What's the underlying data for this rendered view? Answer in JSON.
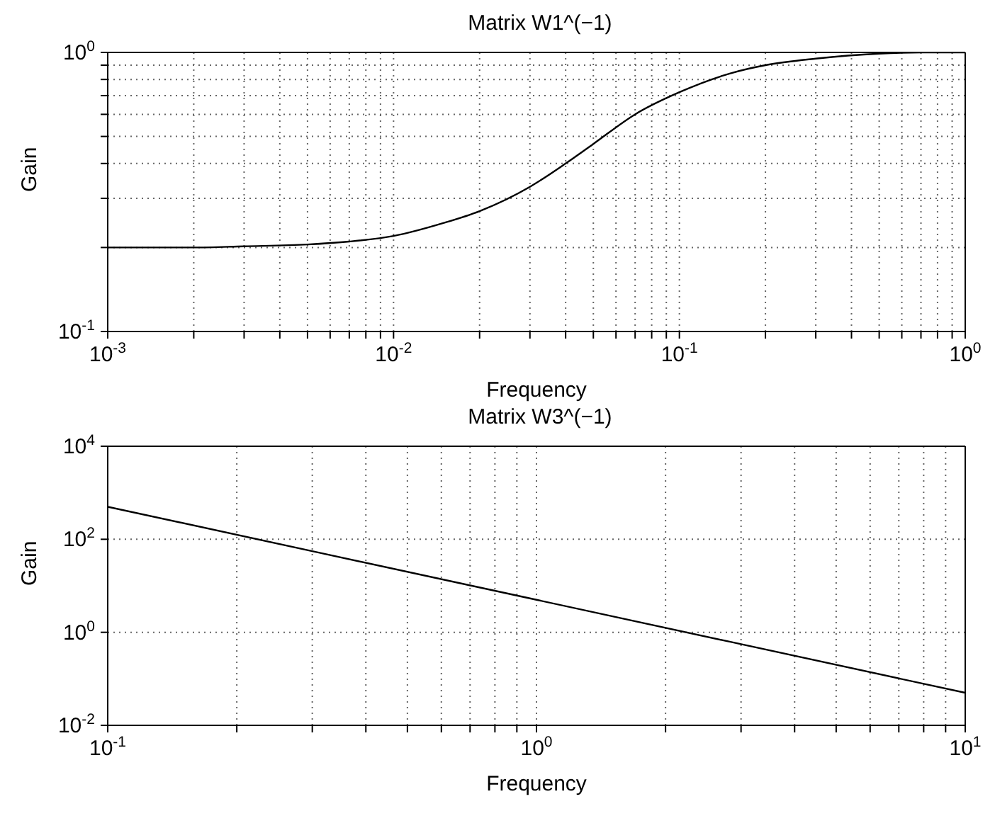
{
  "chart_data": [
    {
      "type": "line",
      "title": "Matrix W1^(−1)",
      "xlabel": "Frequency",
      "ylabel": "Gain",
      "log": "xy",
      "grid": true,
      "x": [
        0.001,
        0.002,
        0.003,
        0.005,
        0.007,
        0.01,
        0.015,
        0.02,
        0.03,
        0.04,
        0.05,
        0.07,
        0.1,
        0.15,
        0.2,
        0.3,
        0.5,
        0.7,
        1
      ],
      "series": [
        {
          "color": "#000000",
          "values": [
            0.2,
            0.2,
            0.202,
            0.205,
            0.21,
            0.22,
            0.245,
            0.27,
            0.33,
            0.4,
            0.47,
            0.6,
            0.72,
            0.84,
            0.9,
            0.95,
            0.99,
            1.0,
            1.0
          ]
        }
      ],
      "xlim": [
        0.001,
        1
      ],
      "ylim": [
        0.1,
        1
      ],
      "xticks": [
        {
          "value": 0.001,
          "label": "10$^{-3}$"
        },
        {
          "value": 0.002,
          "label": null
        },
        {
          "value": 0.003,
          "label": null
        },
        {
          "value": 0.004,
          "label": null
        },
        {
          "value": 0.005,
          "label": null
        },
        {
          "value": 0.006,
          "label": null
        },
        {
          "value": 0.007,
          "label": null
        },
        {
          "value": 0.008,
          "label": null
        },
        {
          "value": 0.009,
          "label": null
        },
        {
          "value": 0.01,
          "label": "10$^{-2}$"
        },
        {
          "value": 0.02,
          "label": null
        },
        {
          "value": 0.03,
          "label": null
        },
        {
          "value": 0.04,
          "label": null
        },
        {
          "value": 0.05,
          "label": null
        },
        {
          "value": 0.06,
          "label": null
        },
        {
          "value": 0.07,
          "label": null
        },
        {
          "value": 0.08,
          "label": null
        },
        {
          "value": 0.09,
          "label": null
        },
        {
          "value": 0.1,
          "label": "10$^{-1}$"
        },
        {
          "value": 0.2,
          "label": null
        },
        {
          "value": 0.3,
          "label": null
        },
        {
          "value": 0.4,
          "label": null
        },
        {
          "value": 0.5,
          "label": null
        },
        {
          "value": 0.6,
          "label": null
        },
        {
          "value": 0.7,
          "label": null
        },
        {
          "value": 0.8,
          "label": null
        },
        {
          "value": 0.9,
          "label": null
        },
        {
          "value": 1,
          "label": "10$^{0}$"
        }
      ],
      "yticks": [
        {
          "value": 0.1,
          "label": "10$^{-1}$"
        },
        {
          "value": 0.2,
          "label": null
        },
        {
          "value": 0.3,
          "label": null
        },
        {
          "value": 0.4,
          "label": null
        },
        {
          "value": 0.5,
          "label": null
        },
        {
          "value": 0.6,
          "label": null
        },
        {
          "value": 0.7,
          "label": null
        },
        {
          "value": 0.8,
          "label": null
        },
        {
          "value": 0.9,
          "label": null
        },
        {
          "value": 1,
          "label": "10$^{0}$"
        }
      ]
    },
    {
      "type": "line",
      "title": "Matrix W3^(−1)",
      "xlabel": "Frequency",
      "ylabel": "Gain",
      "log": "xy",
      "grid": true,
      "x": [
        0.1,
        1,
        10
      ],
      "series": [
        {
          "color": "#000000",
          "values": [
            500,
            5,
            0.05
          ]
        }
      ],
      "xlim": [
        0.1,
        10
      ],
      "ylim": [
        0.01,
        10000
      ],
      "xticks": [
        {
          "value": 0.1,
          "label": "10$^{-1}$"
        },
        {
          "value": 0.2,
          "label": null
        },
        {
          "value": 0.3,
          "label": null
        },
        {
          "value": 0.4,
          "label": null
        },
        {
          "value": 0.5,
          "label": null
        },
        {
          "value": 0.6,
          "label": null
        },
        {
          "value": 0.7,
          "label": null
        },
        {
          "value": 0.8,
          "label": null
        },
        {
          "value": 0.9,
          "label": null
        },
        {
          "value": 1,
          "label": "10$^{0}$"
        },
        {
          "value": 2,
          "label": null
        },
        {
          "value": 3,
          "label": null
        },
        {
          "value": 4,
          "label": null
        },
        {
          "value": 5,
          "label": null
        },
        {
          "value": 6,
          "label": null
        },
        {
          "value": 7,
          "label": null
        },
        {
          "value": 8,
          "label": null
        },
        {
          "value": 9,
          "label": null
        },
        {
          "value": 10,
          "label": "10$^{1}$"
        }
      ],
      "yticks": [
        {
          "value": 0.01,
          "label": "10$^{-2}$"
        },
        {
          "value": 1,
          "label": "10$^{0}$"
        },
        {
          "value": 100,
          "label": "10$^{2}$"
        },
        {
          "value": 10000,
          "label": "10$^{4}$"
        }
      ]
    }
  ]
}
